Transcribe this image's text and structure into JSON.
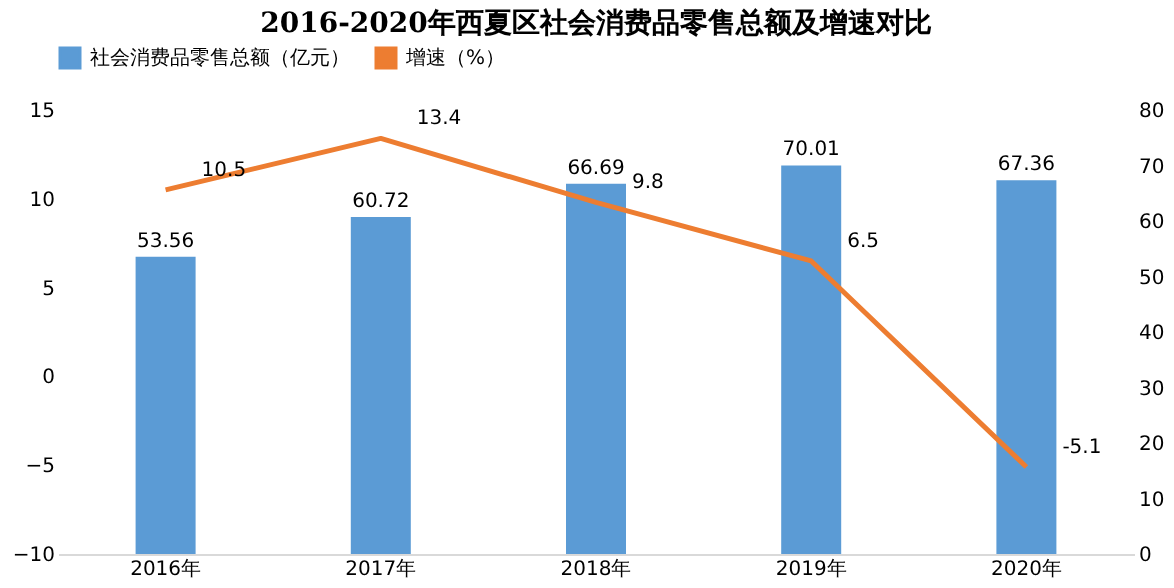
{
  "chart_data": {
    "type": "bar",
    "title": "2016-2020年西夏区社会消费品零售总额及增速对比",
    "categories": [
      "2016年",
      "2017年",
      "2018年",
      "2019年",
      "2020年"
    ],
    "series": [
      {
        "name": "社会消费品零售总额（亿元）",
        "axis": "y2",
        "color": "#5b9bd5",
        "values": [
          53.56,
          60.72,
          66.69,
          70.01,
          67.36
        ]
      },
      {
        "name": "增速（%）",
        "type": "line",
        "axis": "y",
        "color": "#ed7d31",
        "values": [
          10.5,
          13.4,
          9.8,
          6.5,
          -5.1
        ]
      }
    ],
    "ylim": [
      -10,
      15
    ],
    "yticks": [
      -10,
      -5,
      0,
      5,
      10,
      15
    ],
    "y2lim": [
      0,
      80
    ],
    "y2ticks": [
      0,
      10,
      20,
      30,
      40,
      50,
      60,
      70,
      80
    ],
    "data_labels": true,
    "legend": "top",
    "grid": false,
    "marker": "none",
    "line_style": "solid"
  }
}
